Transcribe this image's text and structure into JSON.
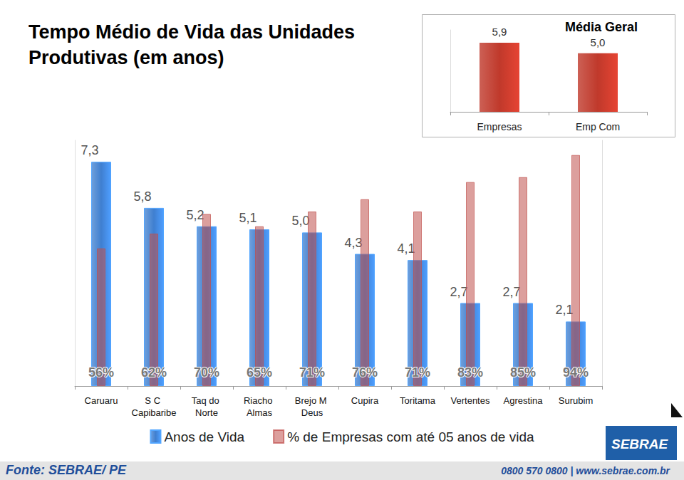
{
  "chart_data": [
    {
      "type": "bar",
      "title": "Tempo Médio de Vida das Unidades Produtivas (em anos)",
      "categories": [
        "Caruaru",
        "S C Capibaribe",
        "Taq do Norte",
        "Riacho Almas",
        "Brejo M Deus",
        "Cupira",
        "Toritama",
        "Vertentes",
        "Agrestina",
        "Surubim"
      ],
      "series": [
        {
          "name": "Anos de Vida",
          "color": "#3f7fd0",
          "values": [
            7.3,
            5.8,
            5.2,
            5.1,
            5.0,
            4.3,
            4.1,
            2.7,
            2.7,
            2.1
          ],
          "value_labels": [
            "7,3",
            "5,8",
            "5,2",
            "5,1",
            "5,0",
            "4,3",
            "4,1",
            "2,7",
            "2,7",
            "2,1"
          ],
          "data_labels": true
        },
        {
          "name": "% de Empresas com até 05 anos de vida",
          "color": "#c0504d",
          "axis": "y2",
          "values": [
            56,
            62,
            70,
            65,
            71,
            76,
            71,
            83,
            85,
            94
          ],
          "value_labels": [
            "56%",
            "62%",
            "70%",
            "65%",
            "71%",
            "76%",
            "71%",
            "83%",
            "85%",
            "94%"
          ],
          "data_labels": true
        }
      ],
      "ylim": [
        0,
        8
      ],
      "y2lim": [
        0,
        100
      ],
      "legend": "bottom",
      "tick_labels": "x",
      "grid": false
    },
    {
      "type": "bar",
      "title": "Média Geral",
      "categories": [
        "Empresas",
        "Emp Com"
      ],
      "values": [
        5.9,
        5.0
      ],
      "value_labels": [
        "5,9",
        "5,0"
      ],
      "color": "#c0392b",
      "ylim": [
        0,
        7
      ],
      "data_labels": true,
      "tick_labels": "x",
      "grid": false
    }
  ],
  "footer": {
    "source": "Fonte: SEBRAE/ PE",
    "contact": "0800 570 0800 | www.sebrae.com.br",
    "logo": "SEBRAE"
  }
}
